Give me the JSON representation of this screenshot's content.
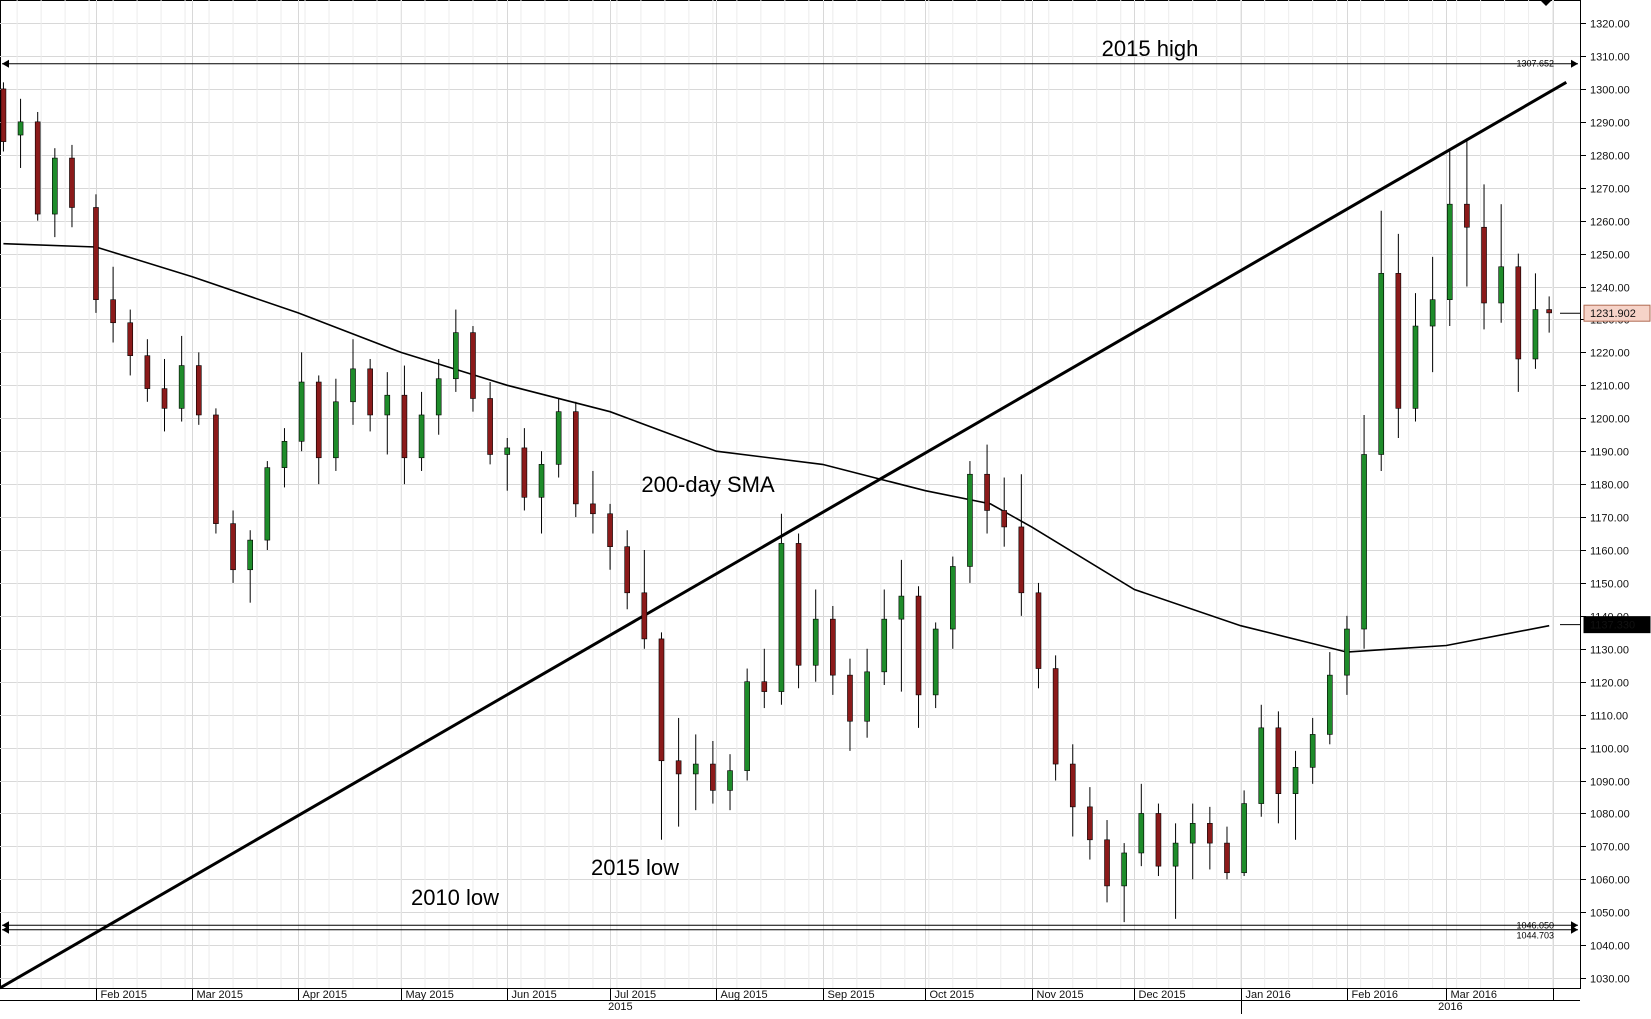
{
  "chart_data": {
    "type": "candlestick",
    "y_range": [
      1027,
      1327
    ],
    "y_axis": {
      "ticks": [
        1030,
        1040,
        1050,
        1060,
        1070,
        1080,
        1090,
        1100,
        1110,
        1120,
        1130,
        1140,
        1150,
        1160,
        1170,
        1180,
        1190,
        1200,
        1210,
        1220,
        1230,
        1240,
        1250,
        1260,
        1270,
        1280,
        1290,
        1300,
        1310,
        1320
      ],
      "tick_labels": [
        "1030.00",
        "1040.00",
        "1050.00",
        "1060.00",
        "1070.00",
        "1080.00",
        "1090.00",
        "1100.00",
        "1110.00",
        "1120.00",
        "1130.00",
        "1140.00",
        "1150.00",
        "1160.00",
        "1170.00",
        "1180.00",
        "1190.00",
        "1200.00",
        "1210.00",
        "1220.00",
        "1230.00",
        "1240.00",
        "1250.00",
        "1260.00",
        "1270.00",
        "1280.00",
        "1290.00",
        "1300.00",
        "1310.00",
        "1320.00"
      ]
    },
    "x_axis": {
      "month_labels": [
        "Feb 2015",
        "Mar 2015",
        "Apr 2015",
        "May 2015",
        "Jun 2015",
        "Jul 2015",
        "Aug 2015",
        "Sep 2015",
        "Oct 2015",
        "Nov 2015",
        "Dec 2015",
        "Jan 2016",
        "Feb 2016",
        "Mar 2016"
      ],
      "year_labels": [
        "2015",
        "2016"
      ]
    },
    "series": [
      {
        "name": "200-day SMA",
        "points": [
          [
            "2015-01-05",
            1253
          ],
          [
            "2015-02-01",
            1252
          ],
          [
            "2015-03-01",
            1243
          ],
          [
            "2015-04-01",
            1232
          ],
          [
            "2015-05-01",
            1220
          ],
          [
            "2015-06-01",
            1210
          ],
          [
            "2015-07-01",
            1202
          ],
          [
            "2015-08-01",
            1190
          ],
          [
            "2015-09-01",
            1186
          ],
          [
            "2015-10-01",
            1178
          ],
          [
            "2015-10-20",
            1174
          ],
          [
            "2015-11-01",
            1167
          ],
          [
            "2015-12-01",
            1148
          ],
          [
            "2016-01-01",
            1137
          ],
          [
            "2016-02-01",
            1129
          ],
          [
            "2016-02-15",
            1130
          ],
          [
            "2016-03-01",
            1131
          ],
          [
            "2016-03-31",
            1137
          ]
        ]
      }
    ],
    "candles": [
      [
        "2015-01-05",
        1300,
        1302,
        1281,
        1284
      ],
      [
        "2015-01-10",
        1286,
        1297,
        1276,
        1290
      ],
      [
        "2015-01-15",
        1290,
        1293,
        1260,
        1262
      ],
      [
        "2015-01-20",
        1262,
        1282,
        1255,
        1279
      ],
      [
        "2015-01-25",
        1279,
        1283,
        1258,
        1264
      ],
      [
        "2015-02-01",
        1264,
        1268,
        1232,
        1236
      ],
      [
        "2015-02-06",
        1236,
        1246,
        1223,
        1229
      ],
      [
        "2015-02-11",
        1229,
        1233,
        1213,
        1219
      ],
      [
        "2015-02-16",
        1219,
        1224,
        1205,
        1209
      ],
      [
        "2015-02-21",
        1209,
        1218,
        1196,
        1203
      ],
      [
        "2015-02-26",
        1203,
        1225,
        1199,
        1216
      ],
      [
        "2015-03-03",
        1216,
        1220,
        1198,
        1201
      ],
      [
        "2015-03-08",
        1201,
        1203,
        1165,
        1168
      ],
      [
        "2015-03-13",
        1168,
        1172,
        1150,
        1154
      ],
      [
        "2015-03-18",
        1154,
        1166,
        1144,
        1163
      ],
      [
        "2015-03-23",
        1163,
        1187,
        1160,
        1185
      ],
      [
        "2015-03-28",
        1185,
        1197,
        1179,
        1193
      ],
      [
        "2015-04-02",
        1193,
        1220,
        1190,
        1211
      ],
      [
        "2015-04-07",
        1211,
        1213,
        1180,
        1188
      ],
      [
        "2015-04-12",
        1188,
        1212,
        1184,
        1205
      ],
      [
        "2015-04-17",
        1205,
        1224,
        1198,
        1215
      ],
      [
        "2015-04-22",
        1215,
        1218,
        1196,
        1201
      ],
      [
        "2015-04-27",
        1201,
        1214,
        1189,
        1207
      ],
      [
        "2015-05-02",
        1207,
        1216,
        1180,
        1188
      ],
      [
        "2015-05-07",
        1188,
        1208,
        1184,
        1201
      ],
      [
        "2015-05-12",
        1201,
        1218,
        1195,
        1212
      ],
      [
        "2015-05-17",
        1212,
        1233,
        1208,
        1226
      ],
      [
        "2015-05-22",
        1226,
        1228,
        1202,
        1206
      ],
      [
        "2015-05-27",
        1206,
        1211,
        1186,
        1189
      ],
      [
        "2015-06-01",
        1189,
        1194,
        1178,
        1191
      ],
      [
        "2015-06-06",
        1191,
        1197,
        1172,
        1176
      ],
      [
        "2015-06-11",
        1176,
        1190,
        1165,
        1186
      ],
      [
        "2015-06-16",
        1186,
        1206,
        1182,
        1202
      ],
      [
        "2015-06-21",
        1202,
        1205,
        1170,
        1174
      ],
      [
        "2015-06-26",
        1174,
        1184,
        1165,
        1171
      ],
      [
        "2015-07-01",
        1171,
        1174,
        1154,
        1161
      ],
      [
        "2015-07-06",
        1161,
        1166,
        1142,
        1147
      ],
      [
        "2015-07-11",
        1147,
        1160,
        1130,
        1133
      ],
      [
        "2015-07-16",
        1133,
        1135,
        1072,
        1096
      ],
      [
        "2015-07-21",
        1096,
        1109,
        1076,
        1092
      ],
      [
        "2015-07-26",
        1092,
        1104,
        1081,
        1095
      ],
      [
        "2015-07-31",
        1095,
        1102,
        1083,
        1087
      ],
      [
        "2015-08-05",
        1087,
        1098,
        1081,
        1093
      ],
      [
        "2015-08-10",
        1093,
        1124,
        1090,
        1120
      ],
      [
        "2015-08-15",
        1120,
        1130,
        1112,
        1117
      ],
      [
        "2015-08-20",
        1117,
        1171,
        1113,
        1162
      ],
      [
        "2015-08-25",
        1162,
        1165,
        1118,
        1125
      ],
      [
        "2015-08-30",
        1125,
        1148,
        1120,
        1139
      ],
      [
        "2015-09-04",
        1139,
        1143,
        1116,
        1122
      ],
      [
        "2015-09-09",
        1122,
        1127,
        1099,
        1108
      ],
      [
        "2015-09-14",
        1108,
        1130,
        1103,
        1123
      ],
      [
        "2015-09-19",
        1123,
        1148,
        1119,
        1139
      ],
      [
        "2015-09-24",
        1139,
        1157,
        1117,
        1146
      ],
      [
        "2015-09-29",
        1146,
        1149,
        1106,
        1116
      ],
      [
        "2015-10-04",
        1116,
        1138,
        1112,
        1136
      ],
      [
        "2015-10-09",
        1136,
        1158,
        1130,
        1155
      ],
      [
        "2015-10-14",
        1155,
        1187,
        1150,
        1183
      ],
      [
        "2015-10-19",
        1183,
        1192,
        1165,
        1172
      ],
      [
        "2015-10-24",
        1172,
        1182,
        1161,
        1167
      ],
      [
        "2015-10-29",
        1167,
        1183,
        1140,
        1147
      ],
      [
        "2015-11-03",
        1147,
        1150,
        1118,
        1124
      ],
      [
        "2015-11-08",
        1124,
        1128,
        1090,
        1095
      ],
      [
        "2015-11-13",
        1095,
        1101,
        1073,
        1082
      ],
      [
        "2015-11-18",
        1082,
        1088,
        1066,
        1072
      ],
      [
        "2015-11-23",
        1072,
        1078,
        1053,
        1058
      ],
      [
        "2015-11-28",
        1058,
        1071,
        1047,
        1068
      ],
      [
        "2015-12-03",
        1068,
        1089,
        1064,
        1080
      ],
      [
        "2015-12-08",
        1080,
        1083,
        1061,
        1064
      ],
      [
        "2015-12-13",
        1064,
        1077,
        1048,
        1071
      ],
      [
        "2015-12-18",
        1071,
        1083,
        1060,
        1077
      ],
      [
        "2015-12-23",
        1077,
        1082,
        1063,
        1071
      ],
      [
        "2015-12-28",
        1071,
        1076,
        1060,
        1062
      ],
      [
        "2016-01-02",
        1062,
        1087,
        1061,
        1083
      ],
      [
        "2016-01-07",
        1083,
        1113,
        1079,
        1106
      ],
      [
        "2016-01-12",
        1106,
        1111,
        1077,
        1086
      ],
      [
        "2016-01-17",
        1086,
        1099,
        1072,
        1094
      ],
      [
        "2016-01-22",
        1094,
        1109,
        1089,
        1104
      ],
      [
        "2016-01-27",
        1104,
        1129,
        1101,
        1122
      ],
      [
        "2016-02-01",
        1122,
        1140,
        1116,
        1136
      ],
      [
        "2016-02-06",
        1136,
        1201,
        1130,
        1189
      ],
      [
        "2016-02-11",
        1189,
        1263,
        1184,
        1244
      ],
      [
        "2016-02-16",
        1244,
        1256,
        1194,
        1203
      ],
      [
        "2016-02-21",
        1203,
        1238,
        1199,
        1228
      ],
      [
        "2016-02-26",
        1228,
        1249,
        1214,
        1236
      ],
      [
        "2016-03-02",
        1236,
        1281,
        1228,
        1265
      ],
      [
        "2016-03-07",
        1265,
        1285,
        1240,
        1258
      ],
      [
        "2016-03-12",
        1258,
        1271,
        1227,
        1235
      ],
      [
        "2016-03-17",
        1235,
        1265,
        1229,
        1246
      ],
      [
        "2016-03-22",
        1246,
        1250,
        1208,
        1218
      ],
      [
        "2016-03-27",
        1218,
        1244,
        1215,
        1233
      ],
      [
        "2016-03-31",
        1233,
        1237,
        1226,
        1232
      ]
    ],
    "annotations": [
      {
        "text": "2015 high",
        "type": "horizontal-line",
        "value": 1307.652,
        "value_label": "1307.652"
      },
      {
        "text": "2015 low",
        "type": "horizontal-line",
        "value": 1046.05,
        "value_label": "1046.050"
      },
      {
        "text": "2010 low",
        "type": "horizontal-line",
        "value": 1044.703,
        "value_label": "1044.703"
      },
      {
        "text": "200-day SMA",
        "type": "label"
      },
      {
        "text": "",
        "type": "trendline",
        "points": [
          [
            "2015-01-04",
            1027
          ],
          [
            "2016-04-05",
            1302
          ]
        ]
      }
    ],
    "price_tags": {
      "last_price": "1231.902",
      "sma_value": "1137.330"
    }
  }
}
